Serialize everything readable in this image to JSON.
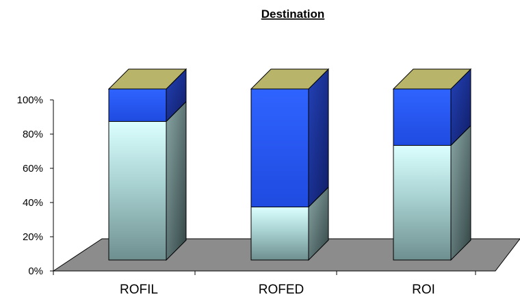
{
  "chart_data": {
    "type": "bar",
    "stacked": true,
    "three_d": true,
    "title": "Destination",
    "categories": [
      "ROFIL",
      "ROFED",
      "ROI"
    ],
    "series": [
      {
        "values": [
          81,
          31,
          67
        ],
        "color": "#d8ffff"
      },
      {
        "values": [
          19,
          69,
          33
        ],
        "color": "#2b5cff"
      }
    ],
    "top_color": "#b8b46a",
    "floor_color": "#8c8c8c",
    "yticks": [
      "0%",
      "20%",
      "40%",
      "60%",
      "80%",
      "100%"
    ],
    "ylim": [
      0,
      100
    ],
    "grid": false,
    "legend": false
  }
}
